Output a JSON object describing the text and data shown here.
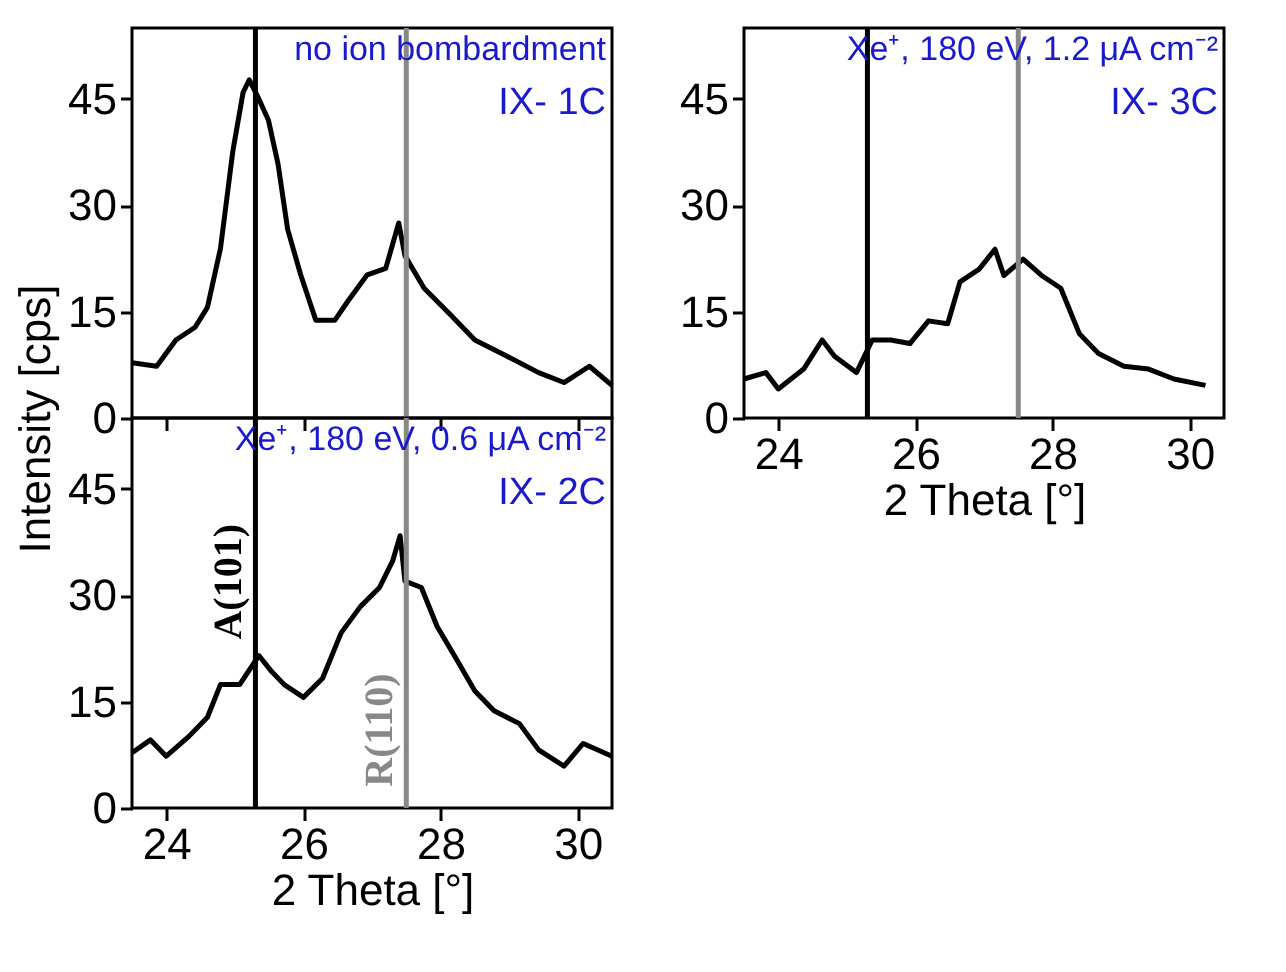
{
  "chart_data": [
    {
      "type": "line",
      "tick_labels": "y",
      "xlim": [
        23.5,
        30.5
      ],
      "xticks": [
        24,
        26,
        28,
        30
      ],
      "ylim": [
        0,
        55
      ],
      "yticks": [
        0,
        15,
        30,
        45
      ],
      "grid": false,
      "x": [
        23.5,
        23.86,
        24.14,
        24.42,
        24.6,
        24.79,
        24.97,
        25.12,
        25.21,
        25.35,
        25.49,
        25.63,
        25.77,
        25.96,
        26.18,
        26.46,
        26.65,
        26.93,
        27.2,
        27.39,
        27.48,
        27.76,
        28.13,
        28.5,
        28.97,
        29.43,
        29.8,
        30.17,
        30.5
      ],
      "series": [
        {
          "color": "#000000",
          "values": [
            7.8,
            7.3,
            11,
            12.8,
            15.6,
            23.9,
            37.6,
            45.9,
            47.7,
            45,
            42,
            35.8,
            26.6,
            20.2,
            13.8,
            13.8,
            16.5,
            20.2,
            21.1,
            27.5,
            22.9,
            18.3,
            14.7,
            11,
            8.7,
            6.4,
            5,
            7.3,
            4.6
          ]
        }
      ],
      "ref_lines": [
        {
          "axis": "x",
          "value": 25.3,
          "color": "#000000"
        },
        {
          "axis": "x",
          "value": 27.5,
          "color": "#888888"
        }
      ],
      "annotations": [
        "no ion bombardment",
        "IX- 1C"
      ]
    },
    {
      "type": "line",
      "xlabel": "2 Theta [°]",
      "xlim": [
        23.5,
        30.5
      ],
      "xticks": [
        24,
        26,
        28,
        30
      ],
      "ylim": [
        0,
        55
      ],
      "yticks": [
        0,
        15,
        30,
        45
      ],
      "grid": false,
      "x": [
        23.5,
        23.82,
        24.0,
        24.37,
        24.64,
        24.82,
        25.14,
        25.37,
        25.64,
        25.92,
        26.19,
        26.47,
        26.65,
        26.93,
        27.16,
        27.29,
        27.57,
        27.84,
        28.12,
        28.39,
        28.67,
        29.04,
        29.4,
        29.77,
        30.23
      ],
      "series": [
        {
          "color": "#000000",
          "values": [
            5.5,
            6.4,
            4.1,
            6.9,
            11,
            8.7,
            6.4,
            11,
            11,
            10.5,
            13.7,
            13.3,
            19.2,
            21,
            23.8,
            20.1,
            22.4,
            20.1,
            18.3,
            11.9,
            9.1,
            7.3,
            6.9,
            5.5,
            4.6
          ]
        }
      ],
      "ref_lines": [
        {
          "axis": "x",
          "value": 25.3,
          "color": "#000000"
        },
        {
          "axis": "x",
          "value": 27.5,
          "color": "#888888"
        }
      ],
      "annotations": [
        "Xe⁺, 180 eV, 1.2 μA cm⁻²",
        "IX- 3C"
      ]
    },
    {
      "type": "line",
      "xlabel": "2 Theta [°]",
      "ylabel": "Intensity [cps]",
      "xlim": [
        23.5,
        30.5
      ],
      "xticks": [
        24,
        26,
        28,
        30
      ],
      "ylim": [
        0,
        55
      ],
      "yticks": [
        0,
        15,
        30,
        45
      ],
      "grid": false,
      "x": [
        23.5,
        23.77,
        24.0,
        24.33,
        24.6,
        24.79,
        25.07,
        25.35,
        25.54,
        25.72,
        26.0,
        26.28,
        26.55,
        26.83,
        27.11,
        27.3,
        27.41,
        27.48,
        27.72,
        27.95,
        28.23,
        28.5,
        28.78,
        29.15,
        29.43,
        29.8,
        30.08,
        30.5
      ],
      "series": [
        {
          "color": "#000000",
          "values": [
            7.8,
            9.6,
            7.3,
            10.1,
            12.8,
            17.4,
            17.4,
            21.5,
            19.2,
            17.4,
            15.6,
            18.3,
            24.7,
            28.4,
            31.1,
            34.8,
            38.4,
            32,
            31.1,
            25.6,
            21,
            16.5,
            13.7,
            11.9,
            8.2,
            5.9,
            9.1,
            7.3
          ]
        }
      ],
      "ref_lines": [
        {
          "axis": "x",
          "value": 25.3,
          "color": "#000000",
          "label": "A(101)"
        },
        {
          "axis": "x",
          "value": 27.5,
          "color": "#888888",
          "label": "R(110)"
        }
      ],
      "annotations": [
        "Xe⁺, 180 eV, 0.6 μA cm⁻²",
        "IX- 2C"
      ]
    }
  ]
}
